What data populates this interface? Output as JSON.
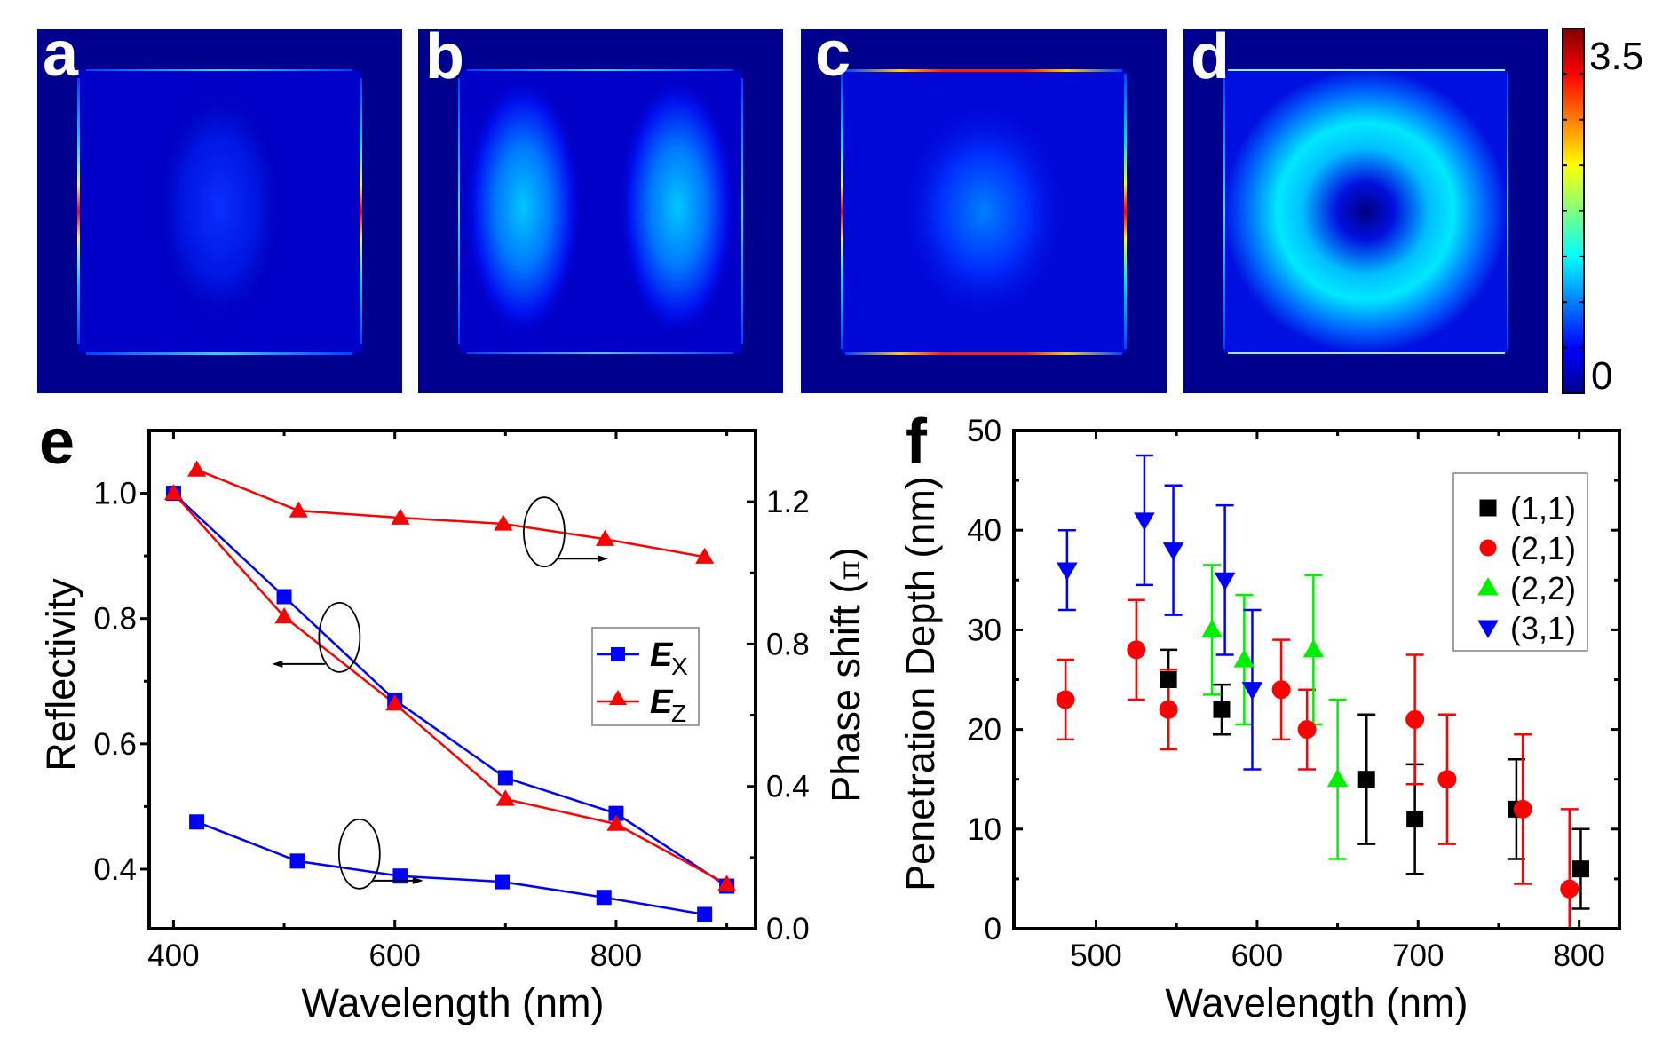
{
  "field_maps": {
    "panels": [
      {
        "label": "a",
        "pattern": "center-lobe"
      },
      {
        "label": "b",
        "pattern": "two-lobes"
      },
      {
        "label": "c",
        "pattern": "center-spot"
      },
      {
        "label": "d",
        "pattern": "ring"
      }
    ],
    "colorbar": {
      "max_label": "3.5",
      "min_label": "0",
      "colormap": "jet",
      "min": 0,
      "max": 3.5
    },
    "background_color": "#00008f"
  },
  "chart_data": [
    {
      "id": "e",
      "panel_label": "e",
      "type": "line",
      "xlabel": "Wavelength (nm)",
      "ylabel": "Reflectivity",
      "y2label_main": "Phase shift (",
      "y2label_symbol": "π",
      "y2label_end": ")",
      "xlim": [
        378,
        926
      ],
      "ylim": [
        0.305,
        1.1
      ],
      "y2lim": [
        0.0,
        1.4
      ],
      "xticks": [
        400,
        600,
        800
      ],
      "xticks_minor": [
        500,
        700,
        900
      ],
      "xtick_labels": [
        "400",
        "600",
        "800"
      ],
      "yticks": [
        0.4,
        0.6,
        0.8,
        1.0
      ],
      "ytick_labels": [
        "0.4",
        "0.6",
        "0.8",
        "1.0"
      ],
      "yticks_minor": [
        0.5,
        0.7,
        0.9
      ],
      "y2ticks": [
        0.0,
        0.4,
        0.8,
        1.2
      ],
      "y2tick_labels": [
        "0.0",
        "0.4",
        "0.8",
        "1.2"
      ],
      "y2ticks_minor": [
        0.2,
        0.6,
        1.0
      ],
      "grid": false,
      "legend_position": "center-right",
      "series": [
        {
          "name": "Ex",
          "legend_main": "E",
          "legend_sub": "X",
          "axis": "left",
          "marker": "square",
          "color": "#0000ff",
          "x": [
            400,
            500,
            600,
            700,
            800,
            900
          ],
          "y": [
            1.0,
            0.835,
            0.67,
            0.546,
            0.489,
            0.373
          ]
        },
        {
          "name": "Ez",
          "legend_main": "E",
          "legend_sub": "Z",
          "axis": "left",
          "marker": "triangle-up",
          "color": "#ff0000",
          "x": [
            400,
            500,
            600,
            700,
            800,
            900
          ],
          "y": [
            1.0,
            0.803,
            0.664,
            0.512,
            0.472,
            0.376
          ]
        },
        {
          "name": "Ex phase",
          "axis": "right",
          "marker": "square",
          "color": "#0000ff",
          "in_legend": false,
          "x": [
            421,
            512,
            605,
            697,
            789,
            880
          ],
          "y": [
            0.3,
            0.19,
            0.148,
            0.132,
            0.088,
            0.04
          ]
        },
        {
          "name": "Ez phase",
          "axis": "right",
          "marker": "triangle-up",
          "color": "#ff0000",
          "in_legend": false,
          "x": [
            421,
            513,
            605,
            698,
            790,
            880
          ],
          "y": [
            1.29,
            1.175,
            1.155,
            1.138,
            1.095,
            1.045
          ]
        }
      ],
      "annotations": [
        {
          "type": "ellipse-arrow",
          "target_axis": "right",
          "series": "Ez phase",
          "arrow_direction": "right",
          "x": 735,
          "y_right": 1.115
        },
        {
          "type": "ellipse-arrow",
          "target_axis": "left",
          "series": "Ex/Ez reflectivity",
          "arrow_direction": "left",
          "x": 550,
          "y_left": 0.77
        },
        {
          "type": "ellipse-arrow",
          "target_axis": "right",
          "series": "Ex phase",
          "arrow_direction": "right",
          "x": 568,
          "y_right": 0.21
        }
      ]
    },
    {
      "id": "f",
      "panel_label": "f",
      "type": "scatter",
      "xlabel": "Wavelength (nm)",
      "ylabel": "Penetration Depth (nm)",
      "xlim": [
        449,
        825
      ],
      "ylim": [
        0,
        50
      ],
      "xticks": [
        500,
        600,
        700,
        800
      ],
      "xtick_labels": [
        "500",
        "600",
        "700",
        "800"
      ],
      "xticks_minor": [
        550,
        650,
        750
      ],
      "yticks": [
        0,
        10,
        20,
        30,
        40,
        50
      ],
      "ytick_labels": [
        "0",
        "10",
        "20",
        "30",
        "40",
        "50"
      ],
      "yticks_minor": [
        5,
        15,
        25,
        35,
        45
      ],
      "grid": false,
      "legend_position": "top-right",
      "error_bars": true,
      "series": [
        {
          "name": "(1,1)",
          "marker": "square",
          "color": "#000000",
          "x": [
            545,
            578,
            668,
            698,
            761,
            801
          ],
          "y": [
            25,
            22,
            15,
            11,
            12,
            6
          ],
          "y_low": [
            22,
            19.5,
            8.5,
            5.5,
            7,
            2
          ],
          "y_high": [
            28,
            24.5,
            21.5,
            16.5,
            17,
            10
          ]
        },
        {
          "name": "(2,1)",
          "marker": "circle",
          "color": "#ff0000",
          "x": [
            481,
            525,
            545,
            615,
            631,
            698,
            718,
            765,
            794
          ],
          "y": [
            23,
            28,
            22,
            24,
            20,
            21,
            15,
            12,
            4
          ],
          "y_low": [
            19,
            23,
            18,
            19,
            16,
            14.5,
            8.5,
            4.5,
            0
          ],
          "y_high": [
            27,
            33,
            26,
            29,
            24,
            27.5,
            21.5,
            19.5,
            12
          ]
        },
        {
          "name": "(2,2)",
          "marker": "triangle-up",
          "color": "#00ee00",
          "x": [
            572,
            592,
            635,
            650
          ],
          "y": [
            30,
            27,
            28,
            15
          ],
          "y_low": [
            23.5,
            20.5,
            20.5,
            7
          ],
          "y_high": [
            36.5,
            33.5,
            35.5,
            23
          ]
        },
        {
          "name": "(3,1)",
          "marker": "triangle-down",
          "color": "#0000ff",
          "x": [
            482,
            530,
            548,
            580,
            597
          ],
          "y": [
            36,
            41,
            38,
            35,
            24
          ],
          "y_low": [
            32,
            34.5,
            31.5,
            27.5,
            16
          ],
          "y_high": [
            40,
            47.5,
            44.5,
            42.5,
            32
          ]
        }
      ]
    }
  ]
}
